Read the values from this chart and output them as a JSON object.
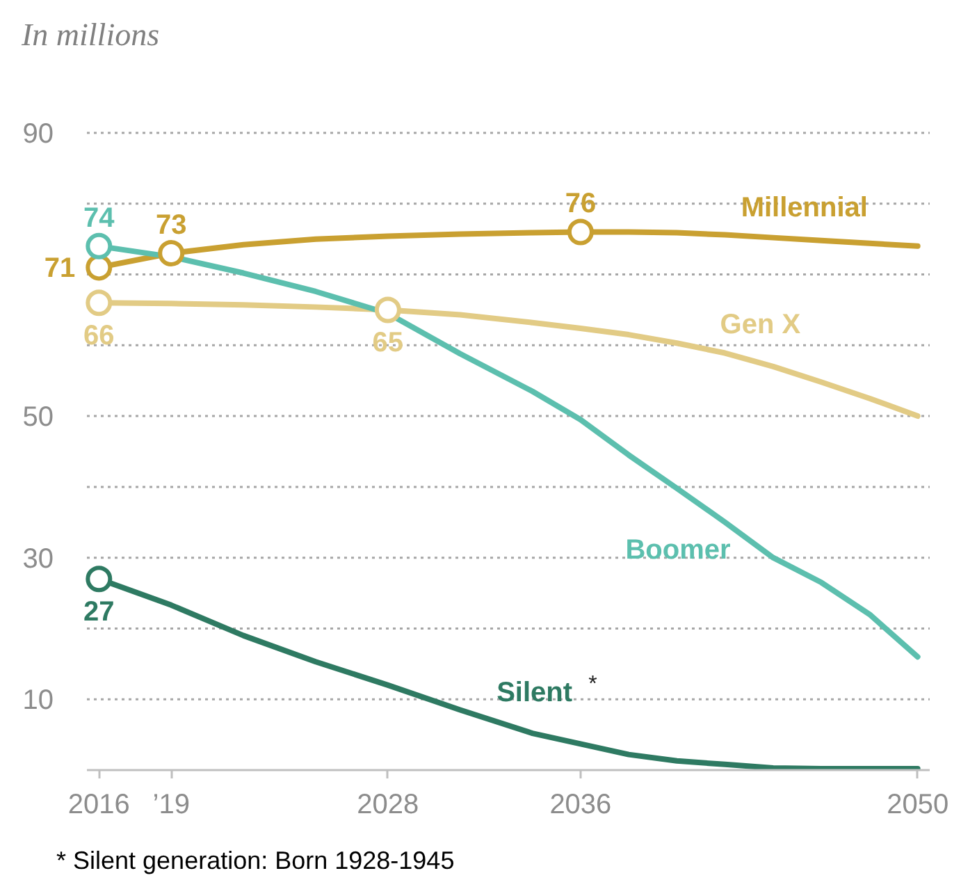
{
  "chart_data": {
    "type": "line",
    "ylabel": "In millions",
    "x": [
      2016,
      2019,
      2022,
      2025,
      2028,
      2031,
      2034,
      2036,
      2038,
      2040,
      2042,
      2044,
      2046,
      2048,
      2050
    ],
    "xlim": [
      2015.5,
      2050.5
    ],
    "xticks": [
      2016,
      {
        "value": 2019,
        "label": "’19"
      },
      2028,
      2036,
      2050
    ],
    "ylim": [
      0,
      90
    ],
    "yticks": [
      10,
      {
        "value": 20,
        "label": null
      },
      30,
      {
        "value": 40,
        "label": null
      },
      50,
      {
        "value": 60,
        "label": null
      },
      {
        "value": 70,
        "label": null
      },
      {
        "value": 80,
        "label": null
      },
      90
    ],
    "grid": "y",
    "series": [
      {
        "name": "Millennial",
        "color": "#c9a031",
        "values": [
          71,
          73,
          74.2,
          75,
          75.4,
          75.7,
          75.9,
          76,
          76,
          75.9,
          75.6,
          75.2,
          74.8,
          74.4,
          74
        ],
        "value_labels": [
          "71",
          "73",
          null,
          null,
          null,
          null,
          null,
          "76",
          null,
          null,
          null,
          null,
          null,
          null,
          null
        ]
      },
      {
        "name": "Gen X",
        "color": "#e2cb85",
        "values": [
          66,
          65.9,
          65.7,
          65.4,
          65,
          64.3,
          63.2,
          62.4,
          61.5,
          60.3,
          58.9,
          57,
          54.8,
          52.5,
          50
        ],
        "value_labels": [
          "66",
          null,
          null,
          null,
          "65",
          null,
          null,
          null,
          null,
          null,
          null,
          null,
          null,
          null,
          null
        ]
      },
      {
        "name": "Boomer",
        "color": "#5cbfae",
        "values": [
          74,
          72.5,
          70.2,
          67.6,
          64.5,
          58.8,
          53.5,
          49.5,
          44.5,
          39.8,
          35,
          30,
          26.5,
          22,
          16
        ],
        "value_labels": [
          "74",
          null,
          null,
          null,
          null,
          null,
          null,
          null,
          null,
          null,
          null,
          null,
          null,
          null,
          null
        ]
      },
      {
        "name": "Silent$^{*}$",
        "color": "#2e7a62",
        "values": [
          27,
          23.3,
          19,
          15.3,
          12,
          8.5,
          5.2,
          3.7,
          2.2,
          1.3,
          0.8,
          0.3,
          0.2,
          0.2,
          0.2
        ],
        "value_labels": [
          "27",
          null,
          null,
          null,
          null,
          null,
          null,
          null,
          null,
          null,
          null,
          null,
          null,
          null,
          null
        ]
      }
    ],
    "annotations": [
      "* Silent generation: Born 1928-1945"
    ]
  }
}
